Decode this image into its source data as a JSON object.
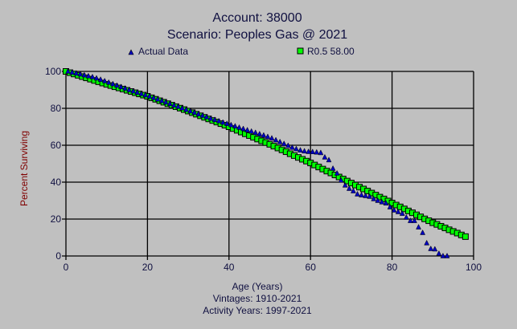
{
  "chart_data": {
    "type": "scatter",
    "title": "Account: 38000",
    "subtitle": "Scenario: Peoples Gas @ 2021",
    "xlabel": "Age (Years)",
    "ylabel": "Percent Surviving",
    "footnotes": [
      "Vintages: 1910-2021",
      "Activity Years: 1997-2021"
    ],
    "xlim": [
      0,
      100
    ],
    "ylim": [
      0,
      100
    ],
    "xticks": [
      "0",
      "20",
      "40",
      "60",
      "80",
      "100"
    ],
    "yticks": [
      "0",
      "20",
      "40",
      "60",
      "80",
      "100"
    ],
    "grid": true,
    "legend_placement": "top",
    "colors": {
      "actual": "#0000c0",
      "fit": "#00ff00",
      "ylabel": "#800000",
      "text": "#101040"
    },
    "series": [
      {
        "name": "Actual Data",
        "marker": "triangle",
        "x": [
          0,
          1,
          2,
          3,
          4,
          5,
          6,
          7,
          8,
          9,
          10,
          11,
          12,
          13,
          14,
          15,
          16,
          17,
          18,
          19,
          20,
          21,
          22,
          23,
          24,
          25,
          26,
          27,
          28,
          29,
          30,
          31,
          32,
          33,
          34,
          35,
          36,
          37,
          38,
          39,
          40,
          41,
          42,
          43,
          44,
          45,
          46,
          47,
          48,
          49,
          50,
          51,
          52,
          53,
          54,
          55,
          56,
          57,
          58,
          59,
          60,
          61,
          62,
          63,
          64,
          65,
          66,
          67,
          68,
          69,
          70,
          71,
          72,
          73,
          74,
          75,
          76,
          77,
          78,
          79,
          80,
          81,
          82,
          83,
          84,
          85,
          86,
          87,
          88,
          89,
          90,
          91,
          92,
          93
        ],
        "values": [
          100,
          99.5,
          99,
          98.5,
          98,
          97.5,
          97,
          96.3,
          95.6,
          94.8,
          94,
          93.2,
          92.4,
          91.6,
          90.8,
          90,
          89.3,
          88.6,
          87.9,
          87.2,
          86.5,
          85.7,
          84.9,
          84.1,
          83.3,
          82.5,
          81.7,
          80.9,
          80.1,
          79.3,
          78.5,
          77.7,
          76.9,
          76.1,
          75.3,
          74.5,
          73.8,
          73.1,
          72.4,
          71.7,
          71,
          70.3,
          69.6,
          68.9,
          68.2,
          67.5,
          66.8,
          66.1,
          65.4,
          64.6,
          63.8,
          62.8,
          61.8,
          60.8,
          59.8,
          58.8,
          58,
          57.3,
          56.8,
          56.5,
          56.4,
          56.2,
          55.9,
          53.5,
          52,
          47.4,
          44.8,
          41,
          38.3,
          36.5,
          35.2,
          33.5,
          33,
          32.6,
          32.2,
          30.9,
          30,
          29.2,
          28.6,
          26.5,
          24.8,
          23.9,
          23,
          20.9,
          19.1,
          19.1,
          15.6,
          12.6,
          7,
          3.9,
          3.7,
          1.3,
          0,
          0
        ]
      },
      {
        "name": "R0.5 58.00",
        "marker": "square",
        "x": [
          0,
          1,
          2,
          3,
          4,
          5,
          6,
          7,
          8,
          9,
          10,
          11,
          12,
          13,
          14,
          15,
          16,
          17,
          18,
          19,
          20,
          21,
          22,
          23,
          24,
          25,
          26,
          27,
          28,
          29,
          30,
          31,
          32,
          33,
          34,
          35,
          36,
          37,
          38,
          39,
          40,
          41,
          42,
          43,
          44,
          45,
          46,
          47,
          48,
          49,
          50,
          51,
          52,
          53,
          54,
          55,
          56,
          57,
          58,
          59,
          60,
          61,
          62,
          63,
          64,
          65,
          66,
          67,
          68,
          69,
          70,
          71,
          72,
          73,
          74,
          75,
          76,
          77,
          78,
          79,
          80,
          81,
          82,
          83,
          84,
          85,
          86,
          87,
          88,
          89,
          90,
          91,
          92,
          93,
          94,
          95,
          96,
          97,
          98
        ],
        "values": [
          100,
          99.3,
          98.6,
          97.9,
          97.2,
          96.5,
          95.8,
          95.1,
          94.4,
          93.7,
          93,
          92.35,
          91.7,
          91.05,
          90.4,
          89.75,
          89.1,
          88.45,
          87.8,
          87.15,
          86.5,
          85.7,
          84.9,
          84.1,
          83.3,
          82.5,
          81.7,
          80.9,
          80.1,
          79.3,
          78.5,
          77.65,
          76.8,
          75.95,
          75.1,
          74.25,
          73.4,
          72.55,
          71.7,
          70.85,
          70,
          69.05,
          68.1,
          67.15,
          66.2,
          65.25,
          64.3,
          63.35,
          62.4,
          61.45,
          60.5,
          59.5,
          58.5,
          57.5,
          56.5,
          55.4,
          54.4,
          53.4,
          52.4,
          51.4,
          50.4,
          49.3,
          48.2,
          47.1,
          46,
          45,
          43.9,
          42.8,
          41.7,
          40.6,
          39.5,
          38.4,
          37.3,
          36.3,
          35.2,
          34.1,
          33,
          31.9,
          30.9,
          29.8,
          28.7,
          27.6,
          26.6,
          25.5,
          24.4,
          23.4,
          22.3,
          21.2,
          20.1,
          19.1,
          18,
          17.1,
          16.1,
          15.2,
          14.2,
          13.3,
          12.4,
          11.4,
          10.5
        ]
      }
    ]
  }
}
